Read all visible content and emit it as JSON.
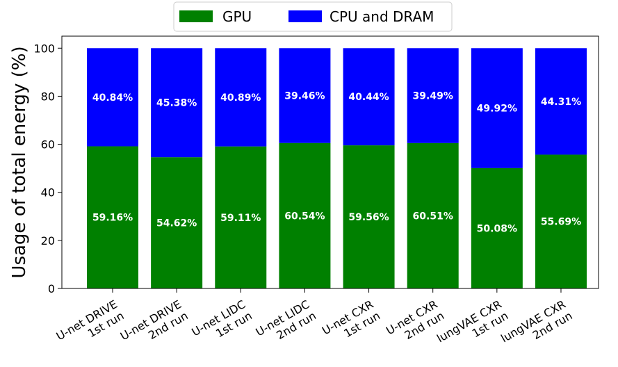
{
  "chart_data": {
    "type": "bar",
    "stacked": true,
    "categories": [
      [
        "U-net DRIVE",
        "1st run"
      ],
      [
        "U-net DRIVE",
        "2nd run"
      ],
      [
        "U-net LIDC",
        "1st run"
      ],
      [
        "U-net LIDC",
        "2nd run"
      ],
      [
        "U-net CXR",
        "1st run"
      ],
      [
        "U-net CXR",
        "2nd run"
      ],
      [
        "lungVAE CXR",
        "1st run"
      ],
      [
        "lungVAE CXR",
        "2nd run"
      ]
    ],
    "series": [
      {
        "name": "GPU",
        "color": "#008000",
        "values": [
          59.16,
          54.62,
          59.11,
          60.54,
          59.56,
          60.51,
          50.08,
          55.69
        ],
        "labels": [
          "59.16%",
          "54.62%",
          "59.11%",
          "60.54%",
          "59.56%",
          "60.51%",
          "50.08%",
          "55.69%"
        ]
      },
      {
        "name": "CPU and DRAM",
        "color": "#0000ff",
        "values": [
          40.84,
          45.38,
          40.89,
          39.46,
          40.44,
          39.49,
          49.92,
          44.31
        ],
        "labels": [
          "40.84%",
          "45.38%",
          "40.89%",
          "39.46%",
          "40.44%",
          "39.49%",
          "49.92%",
          "44.31%"
        ]
      }
    ],
    "xlabel": "",
    "ylabel": "Usage of total energy (%)",
    "ylim": [
      0,
      105
    ],
    "yticks": [
      0,
      20,
      40,
      60,
      80,
      100
    ],
    "ytick_labels": [
      "0",
      "20",
      "40",
      "60",
      "80",
      "100"
    ],
    "grid": false,
    "legend_position": "top-center"
  }
}
